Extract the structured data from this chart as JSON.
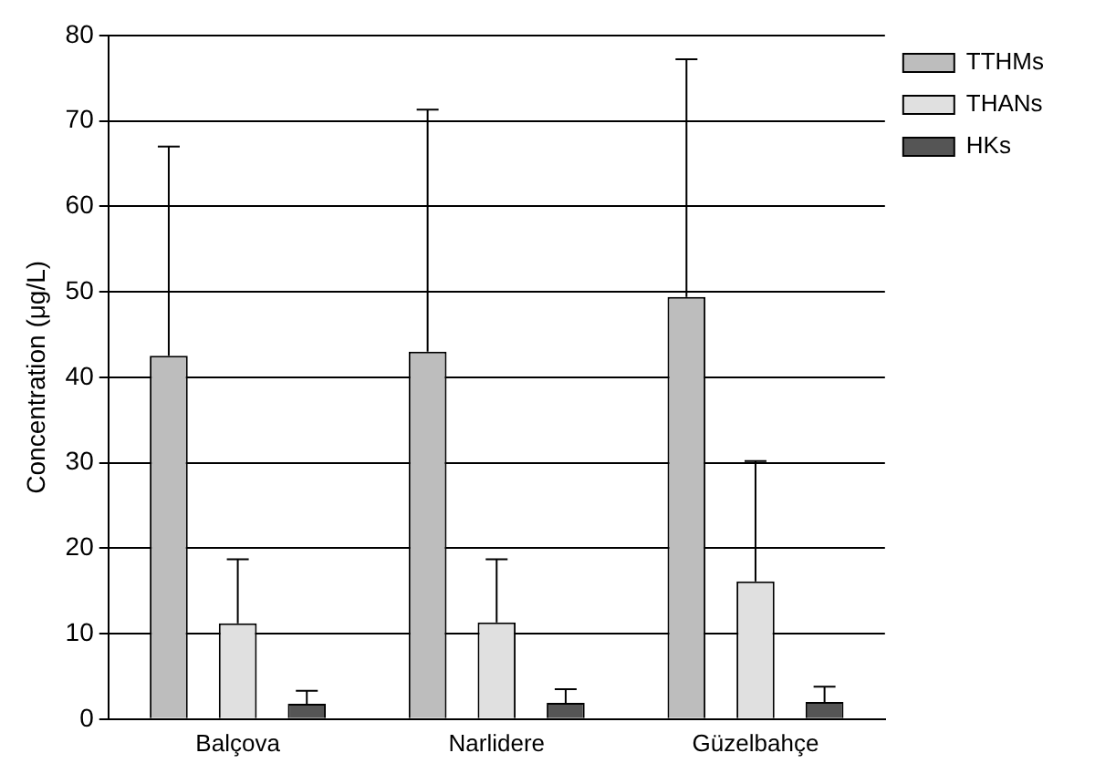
{
  "chart_data": {
    "type": "bar",
    "ylabel": "Concentration (μg/L)",
    "categories": [
      "Balçova",
      "Narlidere",
      "Güzelbahçe"
    ],
    "series": [
      {
        "name": "TTHMs",
        "color": "#bdbdbd",
        "values": [
          42.5,
          43,
          49.4
        ],
        "errors": [
          [
            42.5,
            67
          ],
          [
            43,
            71.3
          ],
          [
            49.4,
            77.2
          ]
        ]
      },
      {
        "name": "THANs",
        "color": "#e0e0e0",
        "values": [
          11.2,
          11.3,
          16.1
        ],
        "errors": [
          [
            11.2,
            18.7
          ],
          [
            11.3,
            18.7
          ],
          [
            16.1,
            30.2
          ]
        ]
      },
      {
        "name": "HKs",
        "color": "#555555",
        "values": [
          1.8,
          1.9,
          2.0
        ],
        "errors": [
          [
            1.8,
            3.3
          ],
          [
            1.9,
            3.5
          ],
          [
            2.0,
            3.8
          ]
        ]
      }
    ],
    "ylim": [
      0,
      80
    ],
    "yticks": [
      0,
      10,
      20,
      30,
      40,
      50,
      60,
      70,
      80
    ],
    "grid": "y",
    "legend": "right"
  }
}
